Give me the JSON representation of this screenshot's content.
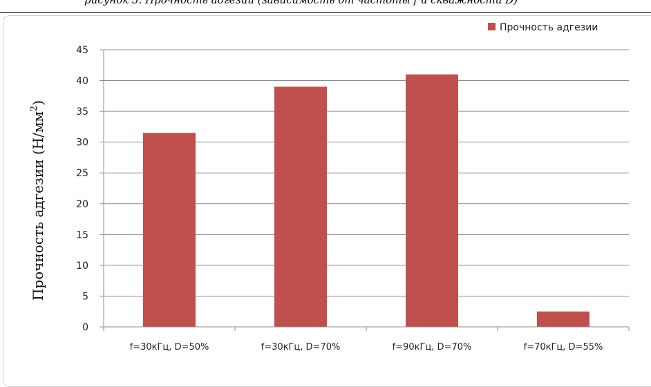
{
  "caption_fragment": "рисунок 3. Прочность адгезии (зависимость от частоты f и скважности D)",
  "chart_data": {
    "type": "bar",
    "categories": [
      "f=30кГц, D=50%",
      "f=30кГц, D=70%",
      "f=90кГц, D=70%",
      "f=70кГц, D=55%"
    ],
    "series": [
      {
        "name": "Прочность адгезии",
        "values": [
          31.5,
          39,
          41,
          2.5
        ],
        "color": "#c0504d"
      }
    ],
    "ylabel_main": "Прочность адгезии (Н/мм",
    "ylabel_sup": "2",
    "ylabel_close": ")",
    "ylim": [
      0,
      45
    ],
    "yticks": [
      0,
      5,
      10,
      15,
      20,
      25,
      30,
      35,
      40,
      45
    ],
    "grid": true,
    "legend_position": "top-right",
    "grid_color": "#8c8c8c"
  }
}
